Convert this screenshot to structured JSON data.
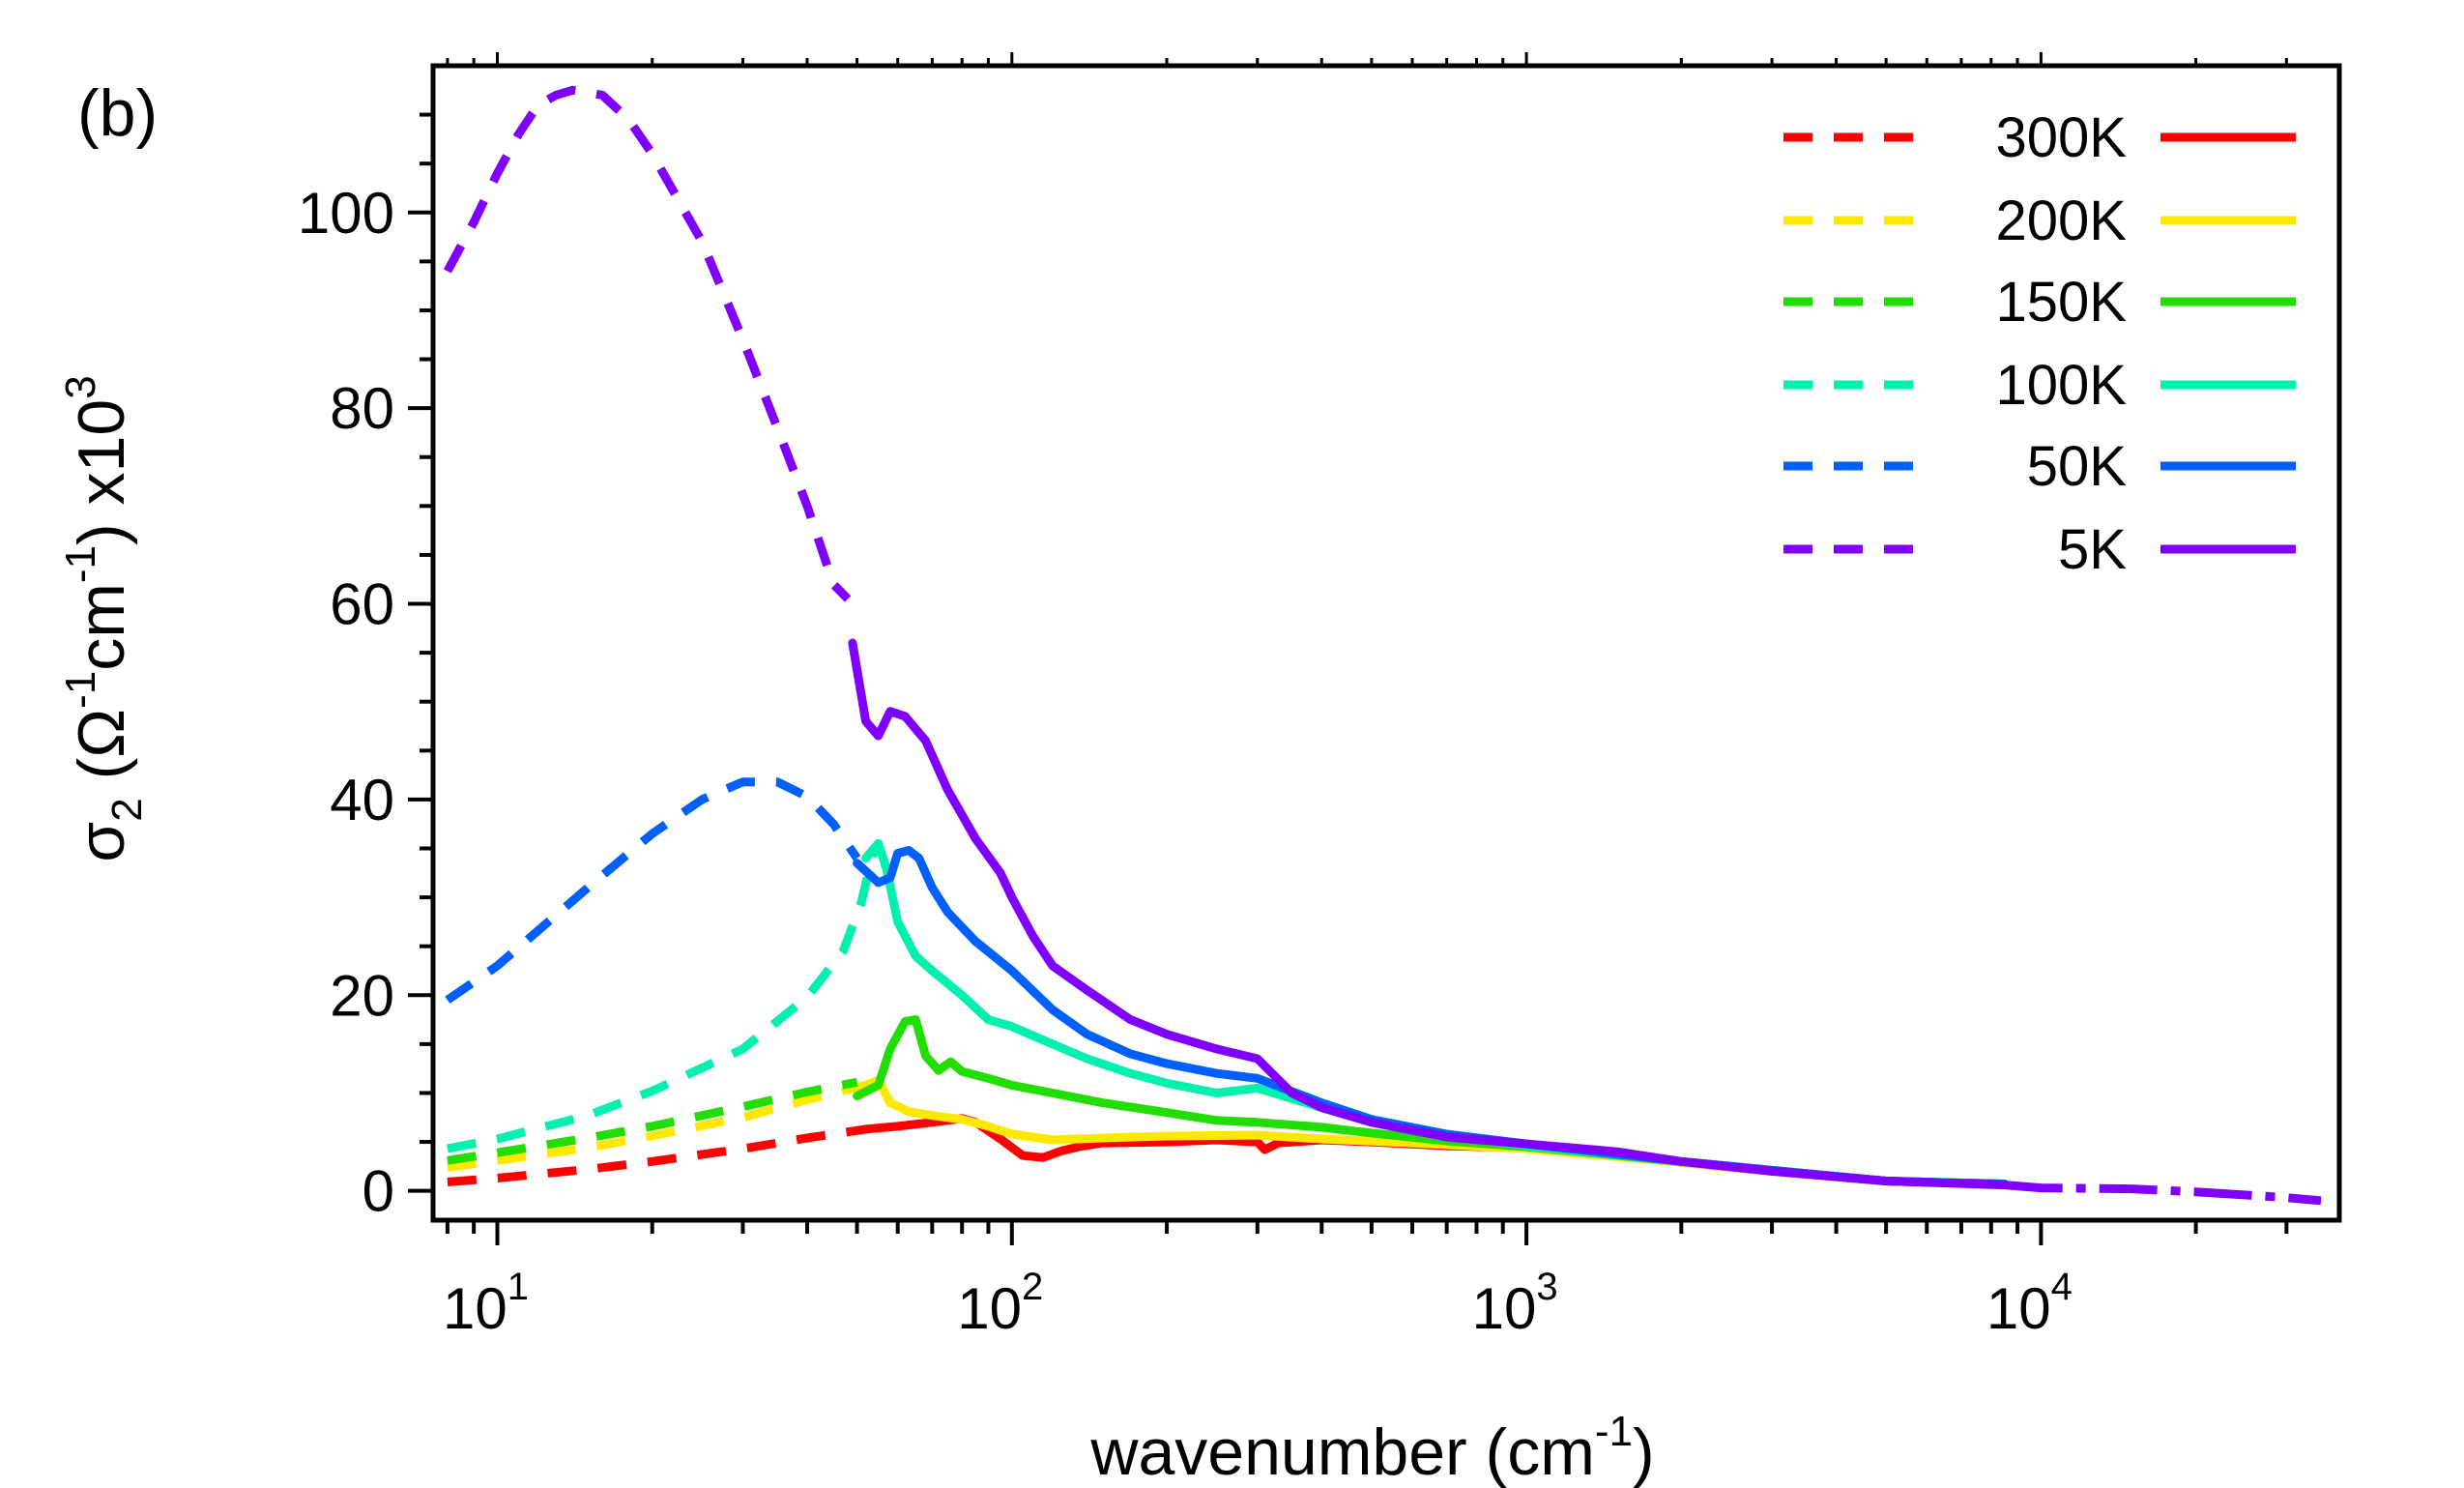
{
  "chart_data": {
    "type": "line",
    "panel_label": "(b)",
    "xlabel": {
      "main": "wavenumber (cm",
      "sup": "-1",
      "close": ")"
    },
    "ylabel": {
      "sigma": "σ",
      "sub": "2",
      "open": "  (Ω",
      "sup1": "-1",
      "cm": "cm",
      "sup2": "-1",
      "close": ") x10",
      "sup3": "3"
    },
    "xscale": "log",
    "xlim": [
      7.5,
      38000
    ],
    "ylim": [
      -3,
      115
    ],
    "grid": false,
    "legend_position": "top-right",
    "x_major_ticks": [
      {
        "value": 10,
        "base": "10",
        "exp": "1"
      },
      {
        "value": 100,
        "base": "10",
        "exp": "2"
      },
      {
        "value": 1000,
        "base": "10",
        "exp": "3"
      },
      {
        "value": 10000,
        "base": "10",
        "exp": "4"
      }
    ],
    "y_major_ticks": [
      {
        "value": 0,
        "label": "0"
      },
      {
        "value": 20,
        "label": "20"
      },
      {
        "value": 40,
        "label": "40"
      },
      {
        "value": 60,
        "label": "60"
      },
      {
        "value": 80,
        "label": "80"
      },
      {
        "value": 100,
        "label": "100"
      }
    ],
    "series": [
      {
        "name": "300K",
        "color": "#ff0000",
        "dashed": [
          [
            8,
            0.9
          ],
          [
            10,
            1.3
          ],
          [
            15,
            2.2
          ],
          [
            20,
            3.0
          ],
          [
            30,
            4.3
          ],
          [
            40,
            5.4
          ],
          [
            52,
            6.3
          ]
        ],
        "solid": [
          [
            52,
            6.3
          ],
          [
            60,
            6.6
          ],
          [
            70,
            7.0
          ],
          [
            80,
            7.4
          ],
          [
            85,
            7.0
          ],
          [
            95,
            5.3
          ],
          [
            105,
            3.6
          ],
          [
            115,
            3.4
          ],
          [
            125,
            4.1
          ],
          [
            135,
            4.5
          ],
          [
            150,
            4.9
          ],
          [
            200,
            5.0
          ],
          [
            250,
            5.2
          ],
          [
            300,
            5.0
          ],
          [
            310,
            4.2
          ],
          [
            330,
            4.9
          ],
          [
            400,
            5.2
          ],
          [
            500,
            5.0
          ],
          [
            700,
            4.6
          ],
          [
            1000,
            4.4
          ],
          [
            1500,
            3.8
          ],
          [
            2000,
            2.9
          ],
          [
            3000,
            2.0
          ],
          [
            5000,
            1.0
          ],
          [
            8500,
            0.7
          ]
        ]
      },
      {
        "name": "200K",
        "color": "#ffe800",
        "dashed": [
          [
            8,
            2.4
          ],
          [
            10,
            3.1
          ],
          [
            15,
            4.4
          ],
          [
            20,
            5.6
          ],
          [
            30,
            7.5
          ],
          [
            40,
            9.3
          ],
          [
            52,
            10.8
          ]
        ],
        "solid": [
          [
            52,
            10.8
          ],
          [
            55,
            11.3
          ],
          [
            58,
            9.0
          ],
          [
            63,
            8.1
          ],
          [
            70,
            7.7
          ],
          [
            80,
            7.3
          ],
          [
            90,
            6.6
          ],
          [
            100,
            5.8
          ],
          [
            120,
            5.2
          ],
          [
            150,
            5.4
          ],
          [
            200,
            5.6
          ],
          [
            300,
            5.7
          ],
          [
            400,
            5.3
          ],
          [
            600,
            4.9
          ],
          [
            1000,
            4.3
          ],
          [
            2000,
            2.9
          ],
          [
            3000,
            2.0
          ],
          [
            5000,
            1.0
          ],
          [
            8500,
            0.7
          ]
        ]
      },
      {
        "name": "150K",
        "color": "#22dd00",
        "dashed": [
          [
            8,
            3.1
          ],
          [
            10,
            3.9
          ],
          [
            15,
            5.4
          ],
          [
            20,
            6.6
          ],
          [
            30,
            8.6
          ],
          [
            40,
            10.1
          ],
          [
            50,
            11.1
          ]
        ],
        "solid": [
          [
            50,
            9.7
          ],
          [
            55,
            10.8
          ],
          [
            58,
            14.5
          ],
          [
            62,
            17.3
          ],
          [
            65,
            17.5
          ],
          [
            68,
            13.8
          ],
          [
            72,
            12.3
          ],
          [
            76,
            13.2
          ],
          [
            80,
            12.2
          ],
          [
            90,
            11.5
          ],
          [
            100,
            10.8
          ],
          [
            120,
            10.0
          ],
          [
            150,
            9.0
          ],
          [
            200,
            8.0
          ],
          [
            250,
            7.2
          ],
          [
            300,
            7.0
          ],
          [
            400,
            6.5
          ],
          [
            500,
            5.9
          ],
          [
            700,
            5.1
          ],
          [
            1000,
            4.5
          ],
          [
            2000,
            3.0
          ],
          [
            3000,
            2.1
          ],
          [
            5000,
            1.0
          ],
          [
            8500,
            0.7
          ]
        ]
      },
      {
        "name": "100K",
        "color": "#00f0b0",
        "dashed": [
          [
            8,
            4.3
          ],
          [
            10,
            5.3
          ],
          [
            15,
            7.7
          ],
          [
            20,
            10.2
          ],
          [
            30,
            14.5
          ],
          [
            40,
            19.8
          ],
          [
            47,
            24.5
          ],
          [
            51,
            29.5
          ],
          [
            54,
            35.0
          ]
        ],
        "solid": [
          [
            52,
            34.0
          ],
          [
            55,
            35.5
          ],
          [
            57,
            33.0
          ],
          [
            60,
            27.5
          ],
          [
            65,
            24.0
          ],
          [
            70,
            22.5
          ],
          [
            80,
            20.0
          ],
          [
            90,
            17.5
          ],
          [
            100,
            16.8
          ],
          [
            120,
            15.0
          ],
          [
            140,
            13.5
          ],
          [
            170,
            12.0
          ],
          [
            200,
            11.0
          ],
          [
            250,
            10.0
          ],
          [
            300,
            10.5
          ],
          [
            400,
            8.5
          ],
          [
            500,
            7.0
          ],
          [
            700,
            5.7
          ],
          [
            1000,
            4.6
          ],
          [
            2000,
            3.0
          ],
          [
            3000,
            2.1
          ],
          [
            5000,
            1.0
          ],
          [
            8500,
            0.7
          ]
        ]
      },
      {
        "name": "50K",
        "color": "#0060ff",
        "dashed": [
          [
            8,
            19.5
          ],
          [
            10,
            23.0
          ],
          [
            15,
            31.0
          ],
          [
            20,
            36.5
          ],
          [
            25,
            40.0
          ],
          [
            30,
            41.8
          ],
          [
            35,
            41.8
          ],
          [
            40,
            40.3
          ],
          [
            45,
            37.5
          ],
          [
            50,
            34.0
          ]
        ],
        "solid": [
          [
            50,
            33.5
          ],
          [
            55,
            31.5
          ],
          [
            58,
            32.0
          ],
          [
            60,
            34.5
          ],
          [
            63,
            34.8
          ],
          [
            66,
            34.0
          ],
          [
            70,
            31.0
          ],
          [
            75,
            28.5
          ],
          [
            85,
            25.5
          ],
          [
            100,
            22.5
          ],
          [
            120,
            18.5
          ],
          [
            140,
            16.0
          ],
          [
            170,
            14.0
          ],
          [
            200,
            13.0
          ],
          [
            250,
            12.0
          ],
          [
            300,
            11.5
          ],
          [
            400,
            9.0
          ],
          [
            500,
            7.3
          ],
          [
            700,
            5.8
          ],
          [
            1000,
            4.8
          ],
          [
            2000,
            3.0
          ],
          [
            3000,
            2.1
          ],
          [
            5000,
            1.0
          ],
          [
            8500,
            0.7
          ]
        ]
      },
      {
        "name": "5K",
        "color": "#8000ff",
        "dashed": [
          [
            8,
            94.0
          ],
          [
            9,
            99.0
          ],
          [
            10,
            104.0
          ],
          [
            11,
            108.0
          ],
          [
            12,
            111.0
          ],
          [
            13,
            112.0
          ],
          [
            14,
            112.5
          ],
          [
            16,
            112.0
          ],
          [
            18,
            109.5
          ],
          [
            20,
            106.0
          ],
          [
            25,
            97.0
          ],
          [
            30,
            87.0
          ],
          [
            35,
            78.0
          ],
          [
            40,
            70.0
          ],
          [
            45,
            62.0
          ],
          [
            48,
            60.5
          ]
        ],
        "solid": [
          [
            49,
            56.0
          ],
          [
            52,
            48.0
          ],
          [
            55,
            46.5
          ],
          [
            58,
            49.0
          ],
          [
            62,
            48.5
          ],
          [
            68,
            46.0
          ],
          [
            75,
            41.0
          ],
          [
            85,
            36.0
          ],
          [
            95,
            32.5
          ],
          [
            100,
            30.0
          ],
          [
            110,
            26.0
          ],
          [
            120,
            23.0
          ],
          [
            140,
            20.5
          ],
          [
            170,
            17.5
          ],
          [
            200,
            16.0
          ],
          [
            250,
            14.5
          ],
          [
            300,
            13.5
          ],
          [
            350,
            10.0
          ],
          [
            400,
            8.5
          ],
          [
            500,
            7.0
          ],
          [
            700,
            5.5
          ],
          [
            1000,
            4.8
          ],
          [
            1500,
            4.0
          ],
          [
            2000,
            3.0
          ],
          [
            3000,
            2.0
          ],
          [
            5000,
            1.0
          ],
          [
            8500,
            0.6
          ]
        ],
        "tail": [
          [
            8500,
            0.6
          ],
          [
            10000,
            0.3
          ],
          [
            15000,
            0.2
          ],
          [
            20000,
            -0.1
          ],
          [
            30000,
            -0.7
          ],
          [
            35000,
            -1.0
          ]
        ]
      }
    ]
  }
}
